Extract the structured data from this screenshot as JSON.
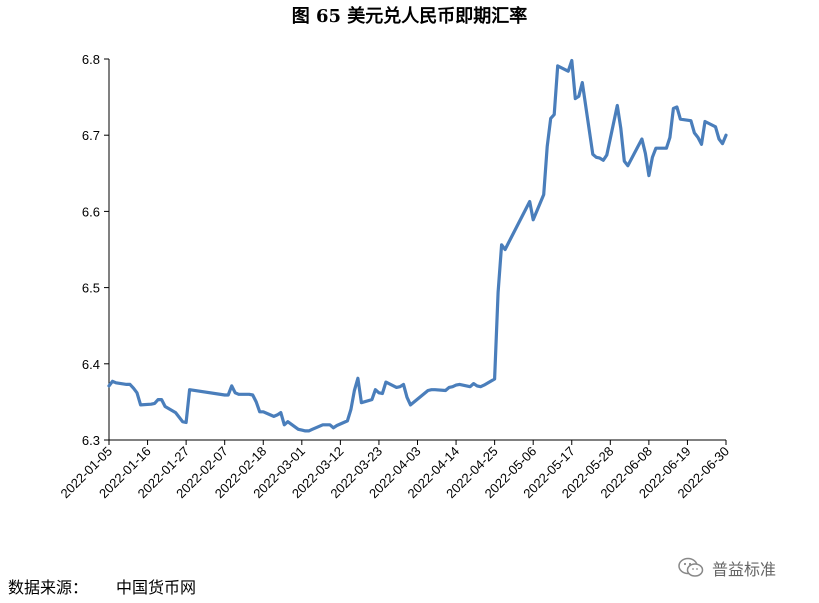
{
  "title": "图 65  美元兑人民币即期汇率",
  "source": {
    "label": "数据来源：",
    "value": "中国货币网"
  },
  "watermark": {
    "text": "普益标准",
    "icon": "wechat-icon"
  },
  "chart_data": {
    "type": "line",
    "title": "图 65  美元兑人民币即期汇率",
    "xlabel": "",
    "ylabel": "",
    "ylim": [
      6.3,
      6.8
    ],
    "yticks": [
      6.3,
      6.4,
      6.5,
      6.6,
      6.7,
      6.8
    ],
    "xticks": [
      "2022-01-05",
      "2022-01-16",
      "2022-01-27",
      "2022-02-07",
      "2022-02-18",
      "2022-03-01",
      "2022-03-12",
      "2022-03-23",
      "2022-04-03",
      "2022-04-14",
      "2022-04-25",
      "2022-05-06",
      "2022-05-17",
      "2022-05-28",
      "2022-06-08",
      "2022-06-19",
      "2022-06-30"
    ],
    "line_color": "#4A7EBB",
    "grid": false,
    "series": [
      {
        "x": [
          "2022-01-05",
          "2022-01-06",
          "2022-01-07",
          "2022-01-10",
          "2022-01-11",
          "2022-01-12",
          "2022-01-13",
          "2022-01-14",
          "2022-01-17",
          "2022-01-18",
          "2022-01-19",
          "2022-01-20",
          "2022-01-21",
          "2022-01-24",
          "2022-01-25",
          "2022-01-26",
          "2022-01-27",
          "2022-01-28",
          "2022-02-07",
          "2022-02-08",
          "2022-02-09",
          "2022-02-10",
          "2022-02-11",
          "2022-02-14",
          "2022-02-15",
          "2022-02-16",
          "2022-02-17",
          "2022-02-18",
          "2022-02-21",
          "2022-02-22",
          "2022-02-23",
          "2022-02-24",
          "2022-02-25",
          "2022-02-28",
          "2022-03-01",
          "2022-03-02",
          "2022-03-03",
          "2022-03-04",
          "2022-03-07",
          "2022-03-08",
          "2022-03-09",
          "2022-03-10",
          "2022-03-11",
          "2022-03-14",
          "2022-03-15",
          "2022-03-16",
          "2022-03-17",
          "2022-03-18",
          "2022-03-21",
          "2022-03-22",
          "2022-03-23",
          "2022-03-24",
          "2022-03-25",
          "2022-03-28",
          "2022-03-29",
          "2022-03-30",
          "2022-03-31",
          "2022-04-01",
          "2022-04-06",
          "2022-04-07",
          "2022-04-08",
          "2022-04-11",
          "2022-04-12",
          "2022-04-13",
          "2022-04-14",
          "2022-04-15",
          "2022-04-18",
          "2022-04-19",
          "2022-04-20",
          "2022-04-21",
          "2022-04-22",
          "2022-04-25",
          "2022-04-26",
          "2022-04-27",
          "2022-04-28",
          "2022-04-29",
          "2022-05-05",
          "2022-05-06",
          "2022-05-09",
          "2022-05-10",
          "2022-05-11",
          "2022-05-12",
          "2022-05-13",
          "2022-05-16",
          "2022-05-17",
          "2022-05-18",
          "2022-05-19",
          "2022-05-20",
          "2022-05-23",
          "2022-05-24",
          "2022-05-25",
          "2022-05-26",
          "2022-05-27",
          "2022-05-30",
          "2022-05-31",
          "2022-06-01",
          "2022-06-02",
          "2022-06-06",
          "2022-06-07",
          "2022-06-08",
          "2022-06-09",
          "2022-06-10",
          "2022-06-13",
          "2022-06-14",
          "2022-06-15",
          "2022-06-16",
          "2022-06-17",
          "2022-06-20",
          "2022-06-21",
          "2022-06-22",
          "2022-06-23",
          "2022-06-24",
          "2022-06-27",
          "2022-06-28",
          "2022-06-29",
          "2022-06-30"
        ],
        "values": [
          6.371,
          6.377,
          6.375,
          6.373,
          6.373,
          6.368,
          6.362,
          6.346,
          6.347,
          6.348,
          6.353,
          6.353,
          6.344,
          6.336,
          6.33,
          6.324,
          6.323,
          6.366,
          6.359,
          6.359,
          6.371,
          6.362,
          6.36,
          6.36,
          6.359,
          6.35,
          6.337,
          6.337,
          6.331,
          6.333,
          6.336,
          6.32,
          6.324,
          6.314,
          6.313,
          6.312,
          6.312,
          6.314,
          6.32,
          6.32,
          6.32,
          6.316,
          6.319,
          6.325,
          6.34,
          6.365,
          6.381,
          6.349,
          6.353,
          6.366,
          6.362,
          6.361,
          6.376,
          6.369,
          6.37,
          6.373,
          6.356,
          6.346,
          6.365,
          6.366,
          6.366,
          6.365,
          6.369,
          6.37,
          6.372,
          6.373,
          6.37,
          6.374,
          6.371,
          6.37,
          6.372,
          6.38,
          6.494,
          6.556,
          6.55,
          6.559,
          6.613,
          6.589,
          6.622,
          6.685,
          6.722,
          6.727,
          6.791,
          6.784,
          6.798,
          6.748,
          6.751,
          6.769,
          6.675,
          6.671,
          6.67,
          6.667,
          6.674,
          6.739,
          6.709,
          6.666,
          6.66,
          6.695,
          6.676,
          6.647,
          6.671,
          6.683,
          6.683,
          6.697,
          6.735,
          6.737,
          6.721,
          6.719,
          6.703,
          6.697,
          6.688,
          6.718,
          6.711,
          6.695,
          6.689,
          6.7
        ]
      }
    ]
  }
}
